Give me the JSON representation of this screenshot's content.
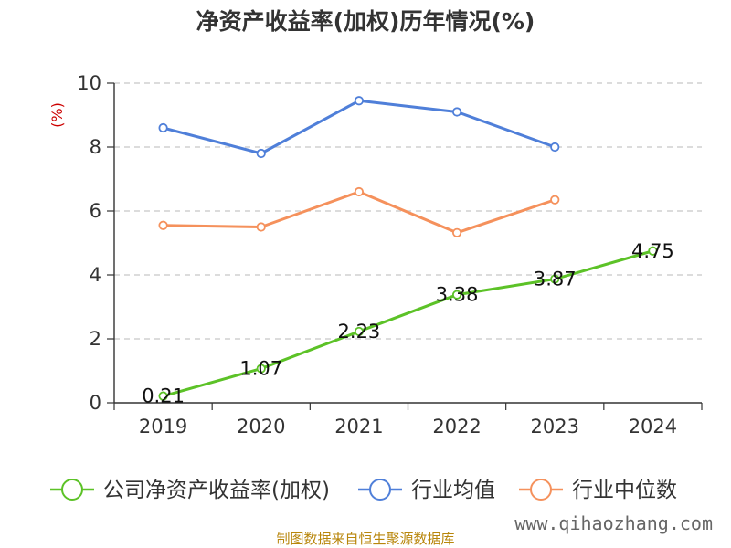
{
  "chart_data": {
    "type": "line",
    "title": "净资产收益率(加权)历年情况(%)",
    "ylabel": "(%)",
    "categories": [
      "2019",
      "2020",
      "2021",
      "2022",
      "2023",
      "2024"
    ],
    "ylim": [
      0,
      10
    ],
    "yticks": [
      0,
      2,
      4,
      6,
      8,
      10
    ],
    "grid": true,
    "legend_position": "bottom",
    "series": [
      {
        "name": "公司净资产收益率(加权)",
        "color": "#5cc227",
        "values": [
          0.21,
          1.07,
          2.23,
          3.38,
          3.87,
          4.75
        ],
        "labels": [
          "0.21",
          "1.07",
          "2.23",
          "3.38",
          "3.87",
          "4.75"
        ]
      },
      {
        "name": "行业均值",
        "color": "#4f7fd9",
        "values": [
          8.6,
          7.8,
          9.45,
          9.1,
          8.0,
          null
        ]
      },
      {
        "name": "行业中位数",
        "color": "#f5915c",
        "values": [
          5.55,
          5.5,
          6.6,
          5.32,
          6.35,
          null
        ]
      }
    ]
  },
  "watermark": "www.qihaozhang.com",
  "source": "制图数据来自恒生聚源数据库"
}
